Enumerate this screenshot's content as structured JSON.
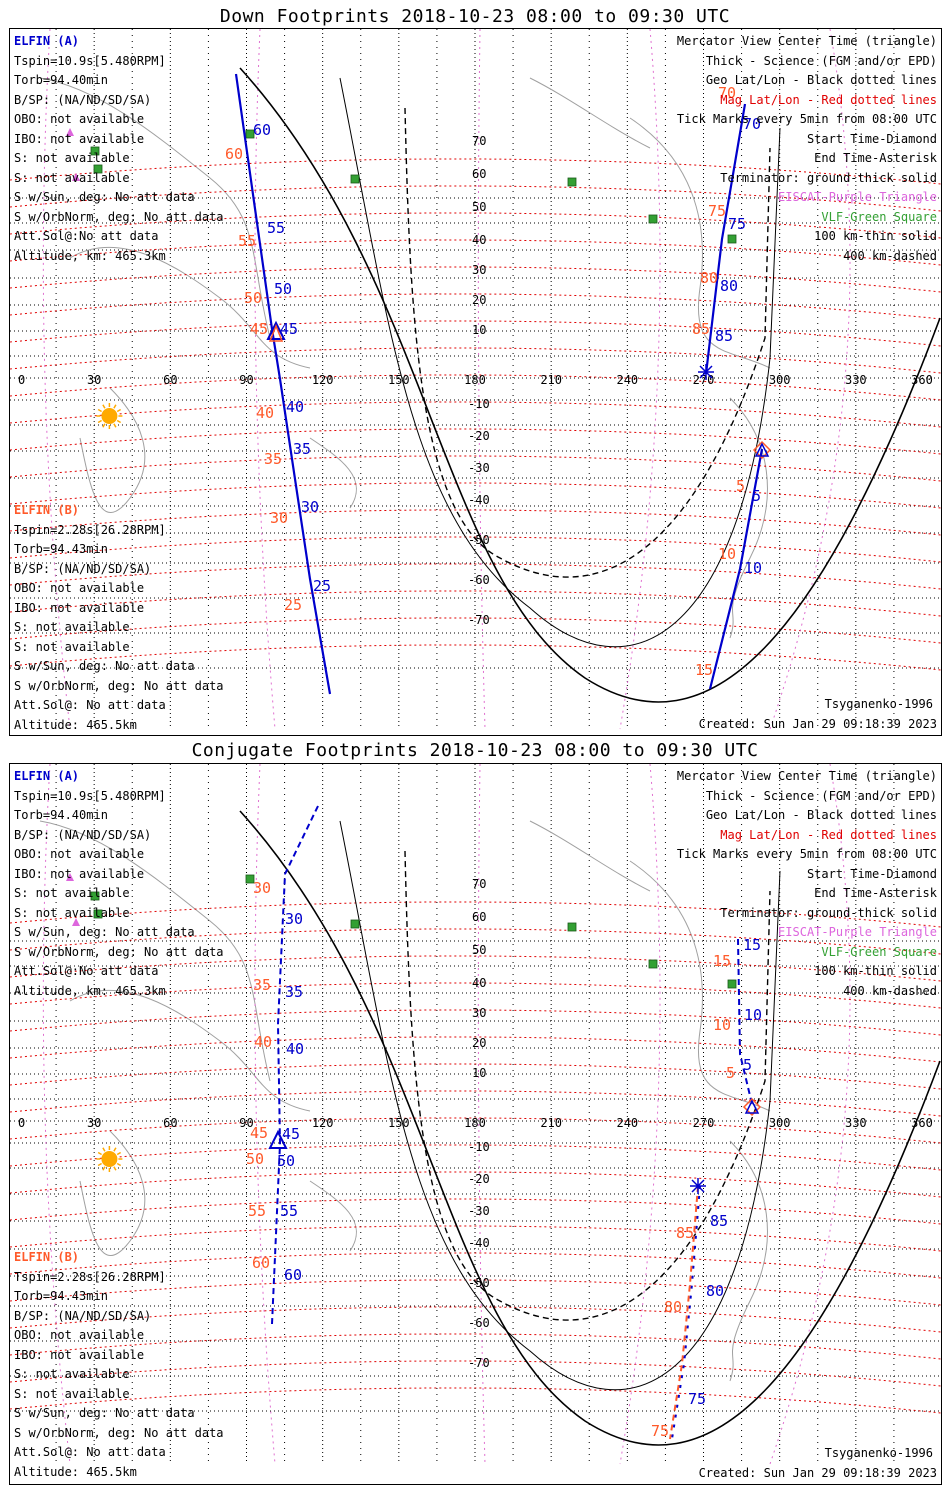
{
  "panels": [
    {
      "title": "Down Footprints 2018-10-23 08:00 to 09:30 UTC",
      "elfin_a": {
        "header": "ELFIN (A)",
        "lines": [
          "Tspin=10.9s[5.480RPM]",
          "Torb=94.40min",
          "B/SP: (NA/ND/SD/SA)",
          "OBO: not available",
          "IBO: not available",
          "S: not available",
          "S: not available",
          "S w/Sun, deg: No att data",
          "S w/OrbNorm, deg: No att data",
          "Att.Sol@:No att data",
          "Altitude, km: 465.3km"
        ]
      },
      "elfin_b": {
        "header": "ELFIN (B)",
        "lines": [
          "Tspin=2.28s[26.28RPM]",
          "Torb=94.43min",
          "B/SP: (NA/ND/SD/SA)",
          "OBO: not available",
          "IBO: not available",
          "S: not available",
          "S: not available",
          "S w/Sun, deg: No att data",
          "S w/OrbNorm, deg: No att data",
          "Att.Sol@: No att data",
          "Altitude: 465.5km"
        ]
      },
      "legend": [
        {
          "text": "Mercator View Center Time (triangle)",
          "color": "#000000"
        },
        {
          "text": "Thick - Science (FGM and/or EPD)",
          "color": "#000000"
        },
        {
          "text": "Geo Lat/Lon - Black dotted lines",
          "color": "#000000"
        },
        {
          "text": "Mag Lat/Lon - Red dotted lines",
          "color": "#e00000"
        },
        {
          "text": "Tick Marks every 5min from 08:00 UTC",
          "color": "#000000"
        },
        {
          "text": "Start Time-Diamond",
          "color": "#000000"
        },
        {
          "text": "End Time-Asterisk",
          "color": "#000000"
        },
        {
          "text": "Terminator: ground-thick solid",
          "color": "#000000"
        },
        {
          "text": "EISCAT-Purple Triangle",
          "color": "#dd66dd"
        },
        {
          "text": "VLF-Green Square",
          "color": "#33a033"
        },
        {
          "text": "100 km-thin solid",
          "color": "#000000"
        },
        {
          "text": "400 km-dashed",
          "color": "#000000"
        }
      ],
      "model": "Tsyganenko-1996",
      "created": "Created: Sun Jan 29 09:18:39 2023",
      "trackA_labels": [
        "60",
        "55",
        "50",
        "45",
        "40",
        "35",
        "30",
        "25"
      ],
      "trackA_labels_orange": [
        "60",
        "55",
        "50",
        "45",
        "40",
        "35",
        "30",
        "25"
      ],
      "trackB_labels": [
        "70",
        "75",
        "80",
        "85",
        "5",
        "10"
      ],
      "trackB_labels_orange": [
        "70",
        "75",
        "80",
        "85",
        "5",
        "10",
        "15"
      ]
    },
    {
      "title": "Conjugate Footprints 2018-10-23 08:00 to 09:30 UTC",
      "elfin_a": {
        "header": "ELFIN (A)",
        "lines": [
          "Tspin=10.9s[5.480RPM]",
          "Torb=94.40min",
          "B/SP: (NA/ND/SD/SA)",
          "OBO: not available",
          "IBO: not available",
          "S: not available",
          "S: not available",
          "S w/Sun, deg: No att data",
          "S w/OrbNorm, deg: No att data",
          "Att.Sol@:No att data",
          "Altitude, km: 465.3km"
        ]
      },
      "elfin_b": {
        "header": "ELFIN (B)",
        "lines": [
          "Tspin=2.28s[26.28RPM]",
          "Torb=94.43min",
          "B/SP: (NA/ND/SD/SA)",
          "OBO: not available",
          "IBO: not available",
          "S: not available",
          "S: not available",
          "S w/Sun, deg: No att data",
          "S w/OrbNorm, deg: No att data",
          "Att.Sol@: No att data",
          "Altitude: 465.5km"
        ]
      },
      "legend": [
        {
          "text": "Mercator View Center Time (triangle)",
          "color": "#000000"
        },
        {
          "text": "Thick - Science (FGM and/or EPD)",
          "color": "#000000"
        },
        {
          "text": "Geo Lat/Lon - Black dotted lines",
          "color": "#000000"
        },
        {
          "text": "Mag Lat/Lon - Red dotted lines",
          "color": "#e00000"
        },
        {
          "text": "Tick Marks every 5min from 08:00 UTC",
          "color": "#000000"
        },
        {
          "text": "Start Time-Diamond",
          "color": "#000000"
        },
        {
          "text": "End Time-Asterisk",
          "color": "#000000"
        },
        {
          "text": "Terminator: ground-thick solid",
          "color": "#000000"
        },
        {
          "text": "EISCAT-Purple Triangle",
          "color": "#dd66dd"
        },
        {
          "text": "VLF-Green Square",
          "color": "#33a033"
        },
        {
          "text": "100 km-thin solid",
          "color": "#000000"
        },
        {
          "text": "400 km-dashed",
          "color": "#000000"
        }
      ],
      "model": "Tsyganenko-1996",
      "created": "Created: Sun Jan 29 09:18:39 2023",
      "trackA_labels": [
        "30",
        "35",
        "40",
        "45",
        "50",
        "55",
        "60"
      ],
      "trackA_labels_orange": [
        "30",
        "35",
        "40",
        "45",
        "50",
        "55",
        "60"
      ],
      "trackB_labels": [
        "15",
        "10",
        "5",
        "85",
        "80",
        "75"
      ],
      "trackB_labels_orange": [
        "15",
        "10",
        "5",
        "85",
        "80",
        "75"
      ]
    }
  ],
  "lon_ticks": [
    "0",
    "30",
    "60",
    "90",
    "120",
    "150",
    "180",
    "210",
    "240",
    "270",
    "300",
    "330",
    "360"
  ],
  "lat_ticks_north": [
    "70",
    "60",
    "50",
    "40",
    "30",
    "20",
    "10"
  ],
  "lat_ticks_south": [
    "-10",
    "-20",
    "-30",
    "-40",
    "-50",
    "-60",
    "-70"
  ],
  "colors": {
    "track": "#0000cc",
    "mag_label": "#ff5a2a",
    "mag_grid": "#e00000",
    "geo_grid": "#000000",
    "coast": "#a0a0a0",
    "eiscat": "#dd66dd",
    "vlf": "#33a033",
    "sun": "#ffaa00"
  }
}
